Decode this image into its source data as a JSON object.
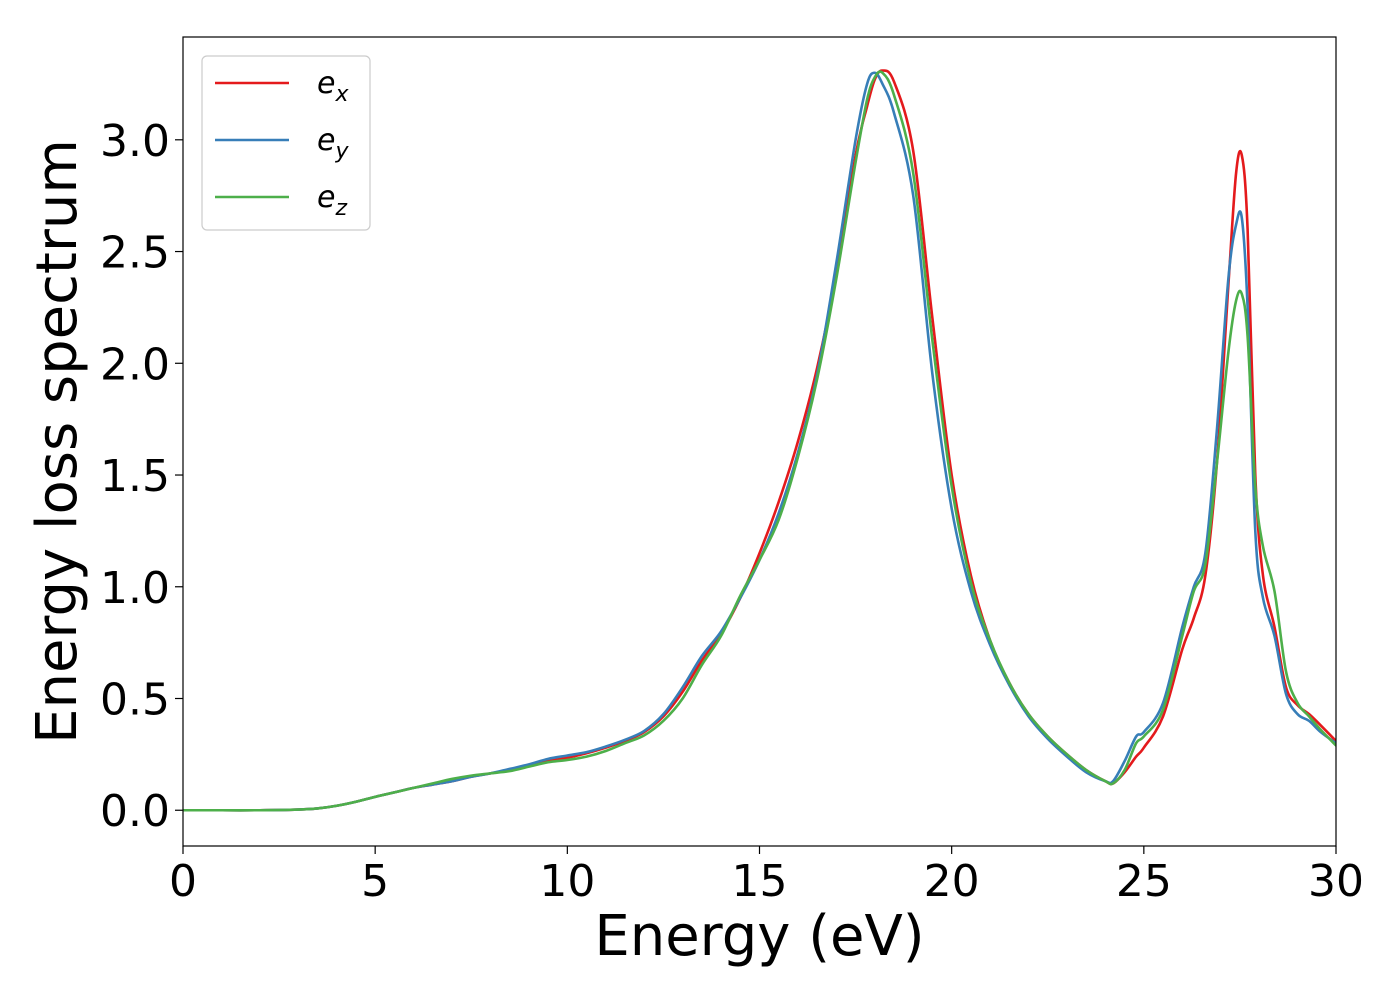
{
  "chart_data": {
    "type": "line",
    "title": "",
    "xlabel": "Energy (eV)",
    "ylabel": "Energy loss spectrum",
    "xlim": [
      0,
      30
    ],
    "ylim": [
      -0.16,
      3.46
    ],
    "xticks": [
      0,
      5,
      10,
      15,
      20,
      25,
      30
    ],
    "xtick_labels": [
      "0",
      "5",
      "10",
      "15",
      "20",
      "25",
      "30"
    ],
    "yticks": [
      0.0,
      0.5,
      1.0,
      1.5,
      2.0,
      2.5,
      3.0
    ],
    "ytick_labels": [
      "0.0",
      "0.5",
      "1.0",
      "1.5",
      "2.0",
      "2.5",
      "3.0"
    ],
    "grid": false,
    "legend_position": "top-left",
    "x": [
      0,
      1,
      2,
      3,
      3.5,
      4,
      4.5,
      5,
      5.5,
      6,
      6.5,
      7,
      7.5,
      8,
      8.5,
      9,
      9.5,
      10,
      10.5,
      11,
      11.5,
      12,
      12.5,
      13,
      13.5,
      14,
      14.5,
      15,
      15.5,
      16,
      16.5,
      17,
      17.5,
      17.8,
      18,
      18.2,
      18.5,
      19,
      19.5,
      20,
      20.5,
      21,
      21.5,
      22,
      22.5,
      23,
      23.5,
      24,
      24.2,
      24.5,
      24.8,
      25,
      25.5,
      26,
      26.3,
      26.6,
      26.9,
      27.2,
      27.4,
      27.55,
      27.7,
      27.9,
      28.1,
      28.4,
      28.7,
      29,
      29.3,
      29.6,
      30
    ],
    "series": [
      {
        "name": "e",
        "subscript": "x",
        "color": "#e41a1c",
        "values": [
          0.0,
          0.0,
          0.0,
          0.003,
          0.008,
          0.02,
          0.038,
          0.06,
          0.08,
          0.1,
          0.115,
          0.13,
          0.15,
          0.165,
          0.18,
          0.2,
          0.22,
          0.235,
          0.255,
          0.28,
          0.31,
          0.35,
          0.42,
          0.53,
          0.67,
          0.79,
          0.95,
          1.15,
          1.38,
          1.65,
          1.98,
          2.4,
          2.93,
          3.15,
          3.27,
          3.31,
          3.26,
          2.95,
          2.2,
          1.5,
          1.05,
          0.76,
          0.57,
          0.43,
          0.33,
          0.25,
          0.18,
          0.13,
          0.12,
          0.17,
          0.24,
          0.28,
          0.42,
          0.72,
          0.86,
          1.05,
          1.55,
          2.35,
          2.85,
          2.93,
          2.6,
          1.5,
          1.05,
          0.82,
          0.55,
          0.47,
          0.43,
          0.38,
          0.31
        ]
      },
      {
        "name": "e",
        "subscript": "y",
        "color": "#377eb8",
        "values": [
          0.0,
          0.0,
          0.0,
          0.003,
          0.008,
          0.02,
          0.038,
          0.06,
          0.08,
          0.1,
          0.115,
          0.13,
          0.15,
          0.165,
          0.185,
          0.205,
          0.23,
          0.245,
          0.26,
          0.285,
          0.315,
          0.355,
          0.43,
          0.55,
          0.69,
          0.8,
          0.95,
          1.12,
          1.33,
          1.6,
          1.95,
          2.45,
          3.0,
          3.25,
          3.3,
          3.25,
          3.12,
          2.75,
          1.95,
          1.35,
          0.98,
          0.74,
          0.56,
          0.42,
          0.32,
          0.24,
          0.17,
          0.13,
          0.13,
          0.22,
          0.33,
          0.35,
          0.48,
          0.82,
          1.0,
          1.15,
          1.7,
          2.38,
          2.62,
          2.65,
          2.25,
          1.25,
          0.95,
          0.78,
          0.52,
          0.43,
          0.4,
          0.35,
          0.3
        ]
      },
      {
        "name": "e",
        "subscript": "z",
        "color": "#4daf4a",
        "values": [
          0.0,
          0.0,
          0.0,
          0.003,
          0.008,
          0.02,
          0.038,
          0.06,
          0.08,
          0.1,
          0.12,
          0.14,
          0.155,
          0.165,
          0.175,
          0.195,
          0.215,
          0.225,
          0.24,
          0.265,
          0.3,
          0.335,
          0.4,
          0.5,
          0.65,
          0.78,
          0.96,
          1.12,
          1.3,
          1.58,
          1.93,
          2.38,
          2.9,
          3.18,
          3.28,
          3.3,
          3.2,
          2.85,
          2.1,
          1.45,
          1.02,
          0.76,
          0.57,
          0.43,
          0.33,
          0.25,
          0.18,
          0.13,
          0.12,
          0.18,
          0.3,
          0.33,
          0.45,
          0.78,
          0.98,
          1.1,
          1.55,
          2.05,
          2.28,
          2.31,
          2.12,
          1.45,
          1.18,
          0.98,
          0.62,
          0.48,
          0.42,
          0.36,
          0.29
        ]
      }
    ]
  }
}
